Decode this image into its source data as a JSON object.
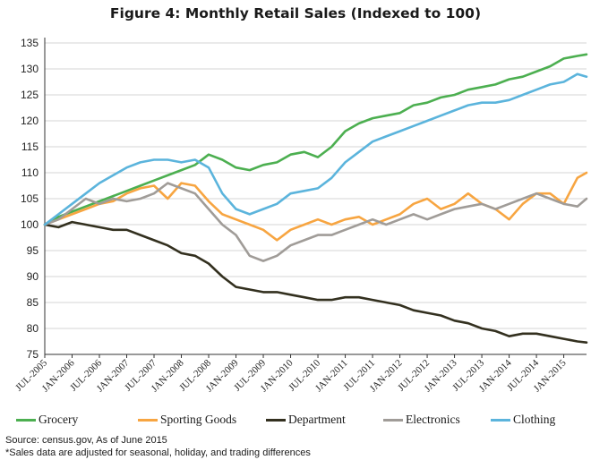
{
  "chart_data": {
    "type": "line",
    "title": "Figure 4: Monthly Retail Sales (Indexed to 100)",
    "xlabel": "",
    "ylabel": "",
    "ylim": [
      75,
      135
    ],
    "yticks": [
      75,
      80,
      85,
      90,
      95,
      100,
      105,
      110,
      115,
      120,
      125,
      130,
      135
    ],
    "x_tick_labels": [
      "JUL-2005",
      "JAN-2006",
      "JUL-2006",
      "JAN-2007",
      "JUL-2007",
      "JAN-2008",
      "JUL-2008",
      "JAN-2009",
      "JUL-2009",
      "JAN-2010",
      "JUL-2010",
      "JAN-2011",
      "JUL-2011",
      "JAN-2012",
      "JUL-2012",
      "JAN-2013",
      "JUL-2013",
      "JAN-2014",
      "JUL-2014",
      "JAN-2015"
    ],
    "x_range": [
      "2005-07",
      "2015-06"
    ],
    "grid": "horizontal",
    "legend_position": "bottom",
    "series": [
      {
        "name": "Grocery",
        "color": "#4caf50",
        "points": [
          [
            "2005-07",
            100
          ],
          [
            "2005-10",
            101.5
          ],
          [
            "2006-01",
            102.5
          ],
          [
            "2006-04",
            103.5
          ],
          [
            "2006-07",
            104.5
          ],
          [
            "2006-10",
            105.5
          ],
          [
            "2007-01",
            106.5
          ],
          [
            "2007-04",
            107.5
          ],
          [
            "2007-07",
            108.5
          ],
          [
            "2007-10",
            109.5
          ],
          [
            "2008-01",
            110.5
          ],
          [
            "2008-04",
            111.5
          ],
          [
            "2008-07",
            113.5
          ],
          [
            "2008-10",
            112.5
          ],
          [
            "2009-01",
            111
          ],
          [
            "2009-04",
            110.5
          ],
          [
            "2009-07",
            111.5
          ],
          [
            "2009-10",
            112
          ],
          [
            "2010-01",
            113.5
          ],
          [
            "2010-04",
            114
          ],
          [
            "2010-07",
            113
          ],
          [
            "2010-10",
            115
          ],
          [
            "2011-01",
            118
          ],
          [
            "2011-04",
            119.5
          ],
          [
            "2011-07",
            120.5
          ],
          [
            "2011-10",
            121
          ],
          [
            "2012-01",
            121.5
          ],
          [
            "2012-04",
            123
          ],
          [
            "2012-07",
            123.5
          ],
          [
            "2012-10",
            124.5
          ],
          [
            "2013-01",
            125
          ],
          [
            "2013-04",
            126
          ],
          [
            "2013-07",
            126.5
          ],
          [
            "2013-10",
            127
          ],
          [
            "2014-01",
            128
          ],
          [
            "2014-04",
            128.5
          ],
          [
            "2014-07",
            129.5
          ],
          [
            "2014-10",
            130.5
          ],
          [
            "2015-01",
            132
          ],
          [
            "2015-04",
            132.5
          ],
          [
            "2015-06",
            132.8
          ]
        ]
      },
      {
        "name": "Sporting Goods",
        "color": "#f7a541",
        "points": [
          [
            "2005-07",
            100
          ],
          [
            "2005-10",
            101
          ],
          [
            "2006-01",
            102
          ],
          [
            "2006-04",
            103
          ],
          [
            "2006-07",
            104
          ],
          [
            "2006-10",
            104.5
          ],
          [
            "2007-01",
            106
          ],
          [
            "2007-04",
            107
          ],
          [
            "2007-07",
            107.5
          ],
          [
            "2007-10",
            105
          ],
          [
            "2008-01",
            108
          ],
          [
            "2008-04",
            107.5
          ],
          [
            "2008-07",
            104.5
          ],
          [
            "2008-10",
            102
          ],
          [
            "2009-01",
            101
          ],
          [
            "2009-04",
            100
          ],
          [
            "2009-07",
            99
          ],
          [
            "2009-10",
            97
          ],
          [
            "2010-01",
            99
          ],
          [
            "2010-04",
            100
          ],
          [
            "2010-07",
            101
          ],
          [
            "2010-10",
            100
          ],
          [
            "2011-01",
            101
          ],
          [
            "2011-04",
            101.5
          ],
          [
            "2011-07",
            100
          ],
          [
            "2011-10",
            101
          ],
          [
            "2012-01",
            102
          ],
          [
            "2012-04",
            104
          ],
          [
            "2012-07",
            105
          ],
          [
            "2012-10",
            103
          ],
          [
            "2013-01",
            104
          ],
          [
            "2013-04",
            106
          ],
          [
            "2013-07",
            104
          ],
          [
            "2013-10",
            103
          ],
          [
            "2014-01",
            101
          ],
          [
            "2014-04",
            104
          ],
          [
            "2014-07",
            106
          ],
          [
            "2014-10",
            106
          ],
          [
            "2015-01",
            104
          ],
          [
            "2015-04",
            109
          ],
          [
            "2015-06",
            110
          ]
        ]
      },
      {
        "name": "Department",
        "color": "#33301f",
        "points": [
          [
            "2005-07",
            100
          ],
          [
            "2005-10",
            99.5
          ],
          [
            "2006-01",
            100.5
          ],
          [
            "2006-04",
            100
          ],
          [
            "2006-07",
            99.5
          ],
          [
            "2006-10",
            99
          ],
          [
            "2007-01",
            99
          ],
          [
            "2007-04",
            98
          ],
          [
            "2007-07",
            97
          ],
          [
            "2007-10",
            96
          ],
          [
            "2008-01",
            94.5
          ],
          [
            "2008-04",
            94
          ],
          [
            "2008-07",
            92.5
          ],
          [
            "2008-10",
            90
          ],
          [
            "2009-01",
            88
          ],
          [
            "2009-04",
            87.5
          ],
          [
            "2009-07",
            87
          ],
          [
            "2009-10",
            87
          ],
          [
            "2010-01",
            86.5
          ],
          [
            "2010-04",
            86
          ],
          [
            "2010-07",
            85.5
          ],
          [
            "2010-10",
            85.5
          ],
          [
            "2011-01",
            86
          ],
          [
            "2011-04",
            86
          ],
          [
            "2011-07",
            85.5
          ],
          [
            "2011-10",
            85
          ],
          [
            "2012-01",
            84.5
          ],
          [
            "2012-04",
            83.5
          ],
          [
            "2012-07",
            83
          ],
          [
            "2012-10",
            82.5
          ],
          [
            "2013-01",
            81.5
          ],
          [
            "2013-04",
            81
          ],
          [
            "2013-07",
            80
          ],
          [
            "2013-10",
            79.5
          ],
          [
            "2014-01",
            78.5
          ],
          [
            "2014-04",
            79
          ],
          [
            "2014-07",
            79
          ],
          [
            "2014-10",
            78.5
          ],
          [
            "2015-01",
            78
          ],
          [
            "2015-04",
            77.5
          ],
          [
            "2015-06",
            77.3
          ]
        ]
      },
      {
        "name": "Electronics",
        "color": "#a09c98",
        "points": [
          [
            "2005-07",
            100
          ],
          [
            "2005-10",
            101
          ],
          [
            "2006-01",
            103
          ],
          [
            "2006-04",
            105
          ],
          [
            "2006-07",
            104
          ],
          [
            "2006-10",
            105
          ],
          [
            "2007-01",
            104.5
          ],
          [
            "2007-04",
            105
          ],
          [
            "2007-07",
            106
          ],
          [
            "2007-10",
            108
          ],
          [
            "2008-01",
            107
          ],
          [
            "2008-04",
            106
          ],
          [
            "2008-07",
            103
          ],
          [
            "2008-10",
            100
          ],
          [
            "2009-01",
            98
          ],
          [
            "2009-04",
            94
          ],
          [
            "2009-07",
            93
          ],
          [
            "2009-10",
            94
          ],
          [
            "2010-01",
            96
          ],
          [
            "2010-04",
            97
          ],
          [
            "2010-07",
            98
          ],
          [
            "2010-10",
            98
          ],
          [
            "2011-01",
            99
          ],
          [
            "2011-04",
            100
          ],
          [
            "2011-07",
            101
          ],
          [
            "2011-10",
            100
          ],
          [
            "2012-01",
            101
          ],
          [
            "2012-04",
            102
          ],
          [
            "2012-07",
            101
          ],
          [
            "2012-10",
            102
          ],
          [
            "2013-01",
            103
          ],
          [
            "2013-04",
            103.5
          ],
          [
            "2013-07",
            104
          ],
          [
            "2013-10",
            103
          ],
          [
            "2014-01",
            104
          ],
          [
            "2014-04",
            105
          ],
          [
            "2014-07",
            106
          ],
          [
            "2014-10",
            105
          ],
          [
            "2015-01",
            104
          ],
          [
            "2015-04",
            103.5
          ],
          [
            "2015-06",
            105
          ]
        ]
      },
      {
        "name": "Clothing",
        "color": "#5bb4dc",
        "points": [
          [
            "2005-07",
            100
          ],
          [
            "2005-10",
            102
          ],
          [
            "2006-01",
            104
          ],
          [
            "2006-04",
            106
          ],
          [
            "2006-07",
            108
          ],
          [
            "2006-10",
            109.5
          ],
          [
            "2007-01",
            111
          ],
          [
            "2007-04",
            112
          ],
          [
            "2007-07",
            112.5
          ],
          [
            "2007-10",
            112.5
          ],
          [
            "2008-01",
            112
          ],
          [
            "2008-04",
            112.5
          ],
          [
            "2008-07",
            111
          ],
          [
            "2008-10",
            106
          ],
          [
            "2009-01",
            103
          ],
          [
            "2009-04",
            102
          ],
          [
            "2009-07",
            103
          ],
          [
            "2009-10",
            104
          ],
          [
            "2010-01",
            106
          ],
          [
            "2010-04",
            106.5
          ],
          [
            "2010-07",
            107
          ],
          [
            "2010-10",
            109
          ],
          [
            "2011-01",
            112
          ],
          [
            "2011-04",
            114
          ],
          [
            "2011-07",
            116
          ],
          [
            "2011-10",
            117
          ],
          [
            "2012-01",
            118
          ],
          [
            "2012-04",
            119
          ],
          [
            "2012-07",
            120
          ],
          [
            "2012-10",
            121
          ],
          [
            "2013-01",
            122
          ],
          [
            "2013-04",
            123
          ],
          [
            "2013-07",
            123.5
          ],
          [
            "2013-10",
            123.5
          ],
          [
            "2014-01",
            124
          ],
          [
            "2014-04",
            125
          ],
          [
            "2014-07",
            126
          ],
          [
            "2014-10",
            127
          ],
          [
            "2015-01",
            127.5
          ],
          [
            "2015-04",
            129
          ],
          [
            "2015-06",
            128.5
          ]
        ]
      }
    ]
  },
  "source_note": "Source: census.gov, As of June 2015",
  "adjust_note": "*Sales data are adjusted for seasonal, holiday, and trading differences"
}
